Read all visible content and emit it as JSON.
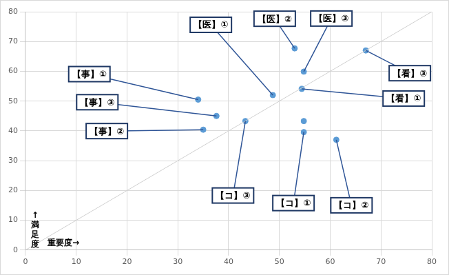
{
  "chart_data": {
    "type": "scatter",
    "x_label": "重要度→",
    "y_label": "↑満足度",
    "xlim": [
      0,
      80
    ],
    "ylim": [
      0,
      80
    ],
    "xticks": [
      0,
      10,
      20,
      30,
      40,
      50,
      60,
      70,
      80
    ],
    "yticks": [
      0,
      10,
      20,
      30,
      40,
      50,
      60,
      70,
      80
    ],
    "grid": true,
    "color": "#5b9bd5",
    "labels": [
      "【事】①",
      "【事】③",
      "【事】②",
      "【コ】③",
      "【医】①",
      "【医】②",
      "【医】③",
      "【看】①",
      "【看】③",
      "【コ】①",
      null,
      "【コ】②"
    ],
    "x": [
      34.0,
      37.6,
      35.0,
      43.3,
      48.7,
      53.0,
      54.8,
      54.4,
      67.0,
      54.8,
      54.8,
      61.2
    ],
    "values": [
      50.5,
      45.0,
      40.4,
      43.3,
      52.0,
      67.7,
      59.9,
      54.1,
      67.0,
      39.6,
      43.3,
      37.0
    ],
    "reference_line": {
      "x": [
        0,
        80
      ],
      "values": [
        0,
        80
      ]
    }
  }
}
